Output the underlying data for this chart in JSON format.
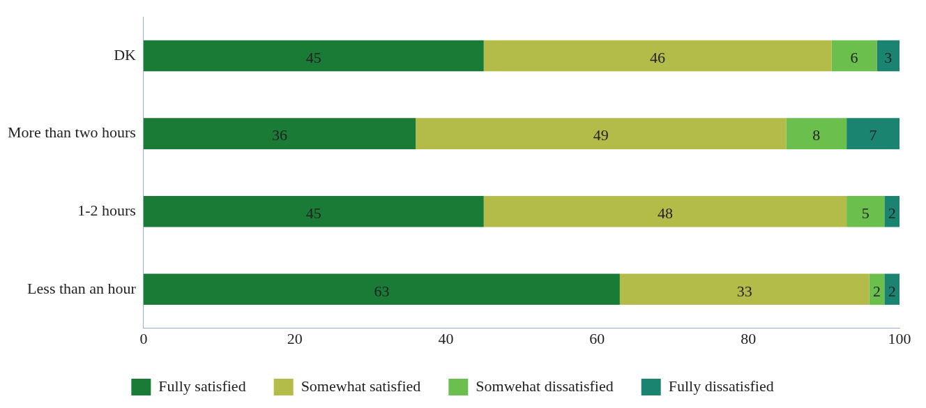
{
  "chart_data": {
    "type": "bar",
    "orientation": "horizontal",
    "stacked": true,
    "categories": [
      "DK",
      "More than two hours",
      "1-2 hours",
      "Less than an hour"
    ],
    "series": [
      {
        "name": "Fully satisfied",
        "color": "#1a7b37",
        "values": [
          45,
          36,
          45,
          63
        ]
      },
      {
        "name": "Somewhat satisfied",
        "color": "#b3bc48",
        "values": [
          46,
          49,
          48,
          33
        ]
      },
      {
        "name": "Somwehat dissatisfied",
        "color": "#6bbf4c",
        "values": [
          6,
          8,
          5,
          2
        ]
      },
      {
        "name": "Fully dissatisfied",
        "color": "#1b8470",
        "values": [
          3,
          7,
          2,
          2
        ]
      }
    ],
    "xlim": [
      0,
      100
    ],
    "xticks": [
      0,
      20,
      40,
      60,
      80,
      100
    ],
    "grid": false,
    "legend": "bottom",
    "data_labels": true
  }
}
